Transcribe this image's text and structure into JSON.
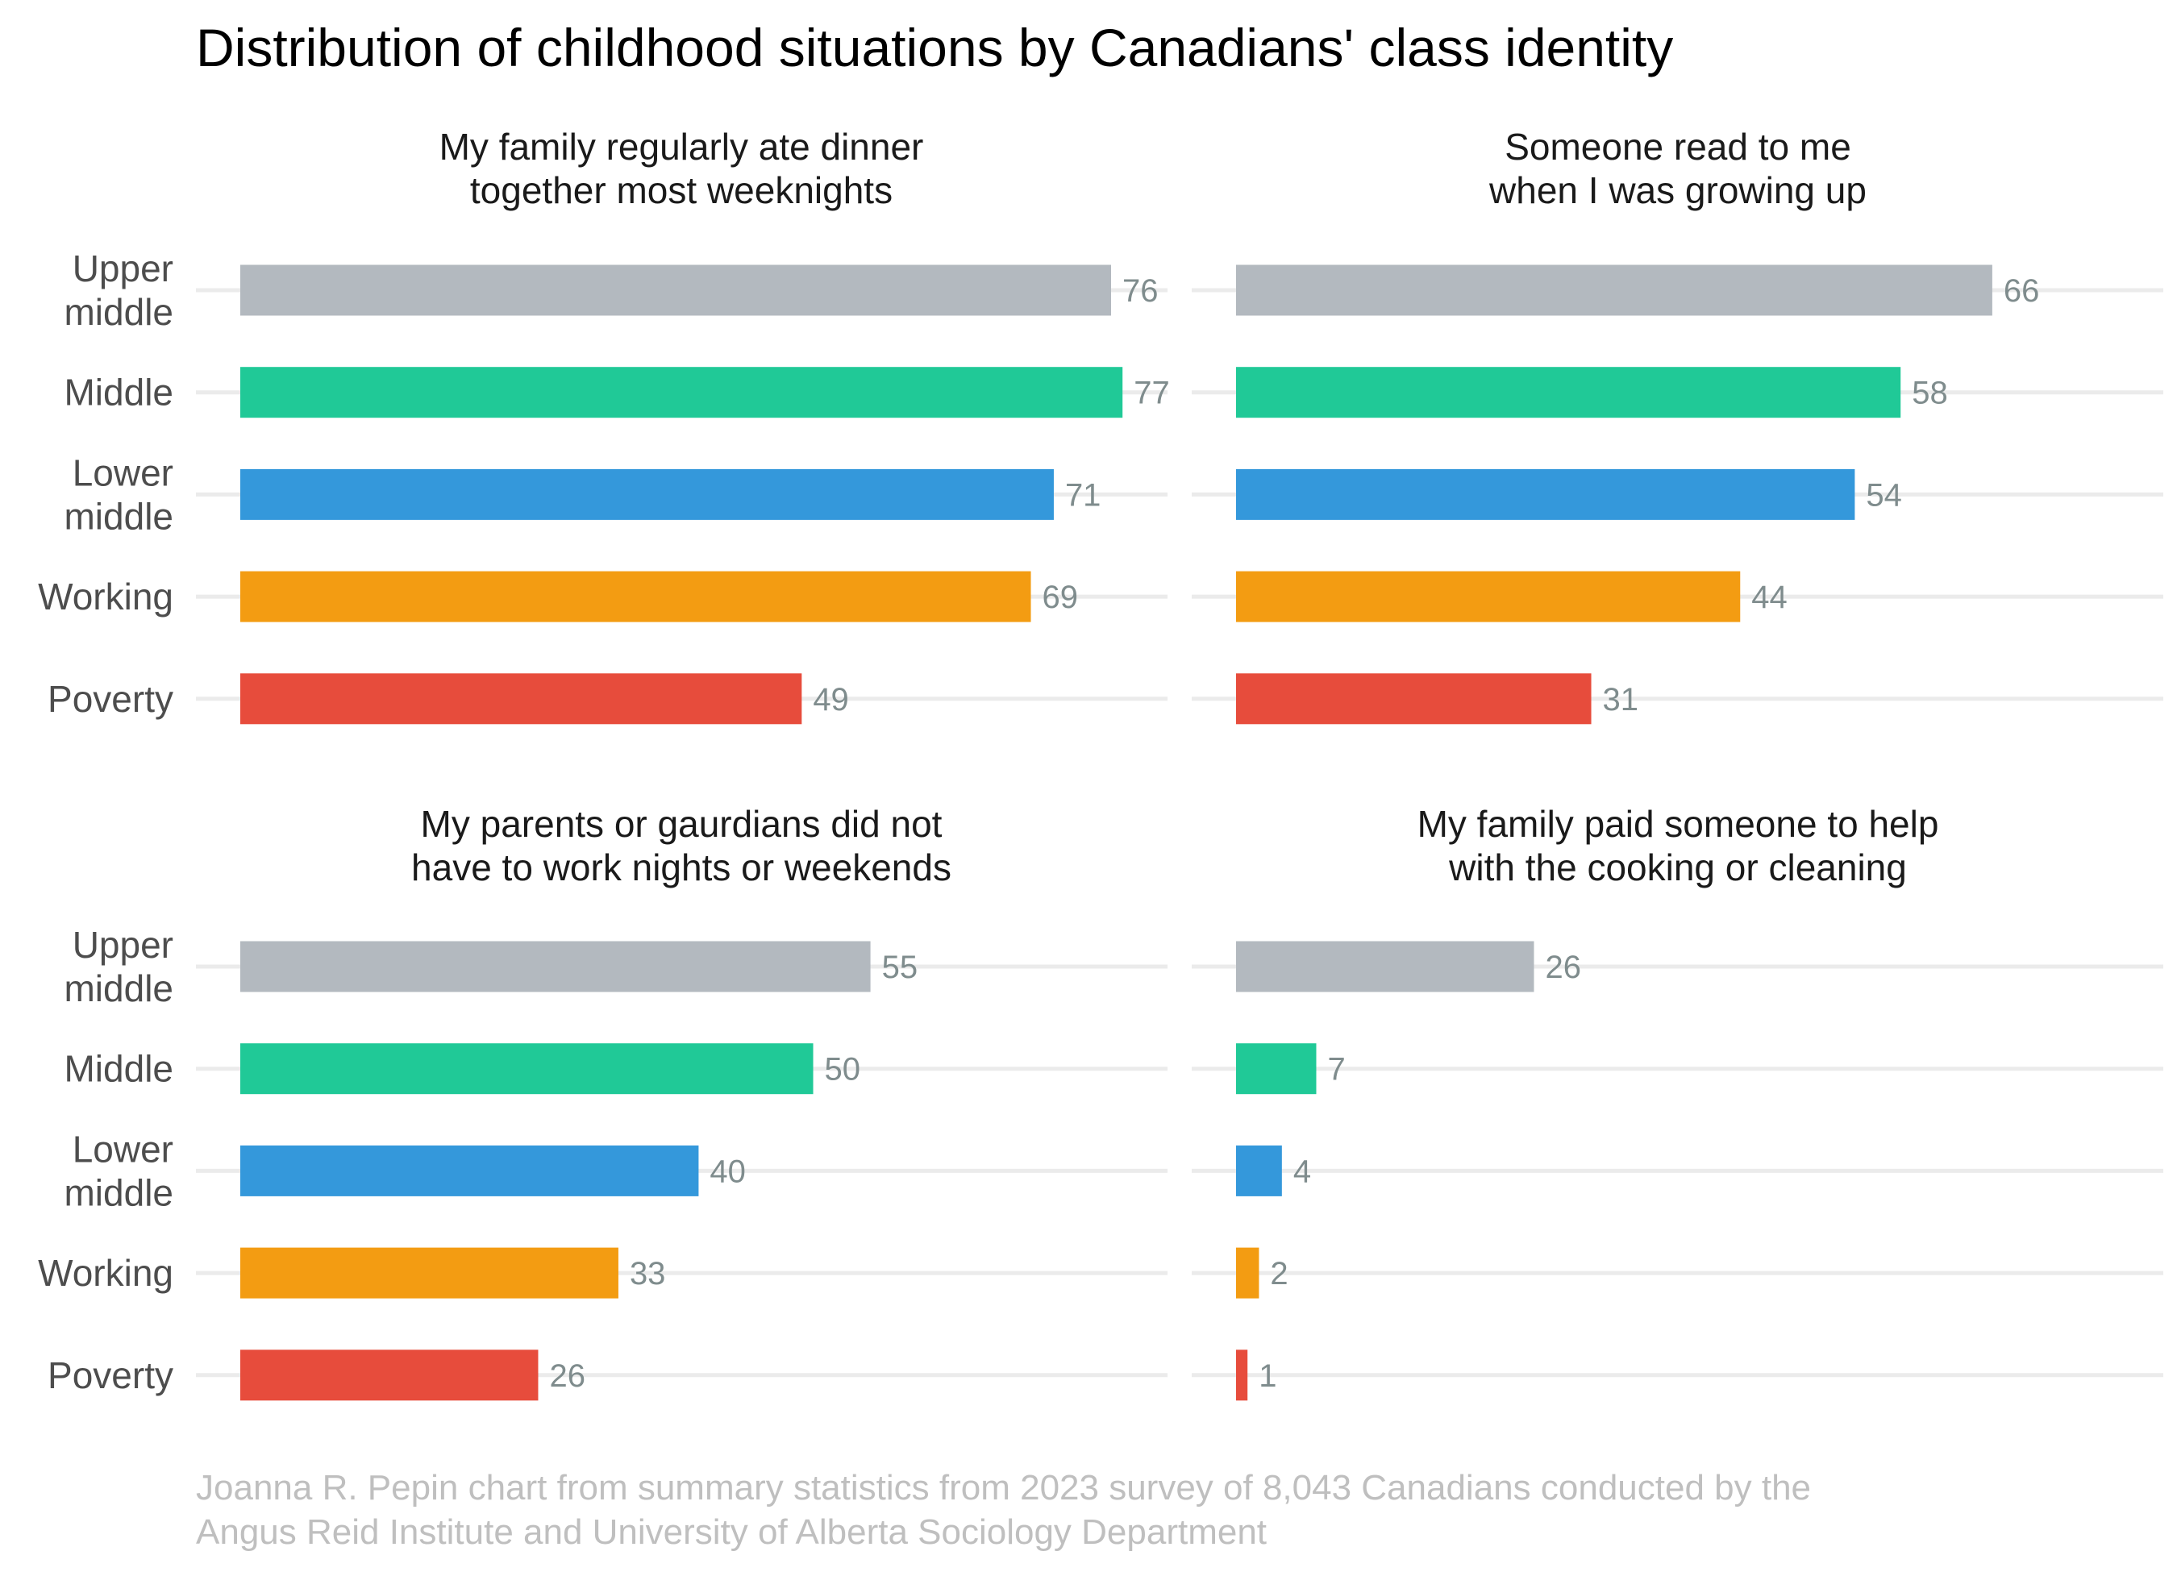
{
  "chart_data": {
    "type": "bar",
    "orientation": "horizontal",
    "title": "Distribution of childhood situations by Canadians' class identity",
    "caption": [
      "Joanna R. Pepin chart from summary statistics from 2023 survey of 8,043 Canadians conducted by the",
      "Angus Reid Institute and University of Alberta Sociology Department"
    ],
    "categories": [
      "Upper middle",
      "Middle",
      "Lower middle",
      "Working",
      "Poverty"
    ],
    "category_label_lines": [
      [
        "Upper",
        "middle"
      ],
      [
        "Middle"
      ],
      [
        "Lower",
        "middle"
      ],
      [
        "Working"
      ],
      [
        "Poverty"
      ]
    ],
    "colors": [
      "#b3b9bf",
      "#20c997",
      "#3498db",
      "#f39c12",
      "#e74c3c"
    ],
    "xlim": [
      0,
      80
    ],
    "grid": true,
    "legend": "none",
    "facets": [
      {
        "title_lines": [
          "My family regularly ate dinner",
          "together most weeknights"
        ],
        "values": [
          76,
          77,
          71,
          69,
          49
        ]
      },
      {
        "title_lines": [
          "Someone read to me",
          "when I was growing up"
        ],
        "values": [
          66,
          58,
          54,
          44,
          31
        ]
      },
      {
        "title_lines": [
          "My parents or gaurdians did not",
          "have to work nights or weekends"
        ],
        "values": [
          55,
          50,
          40,
          33,
          26
        ]
      },
      {
        "title_lines": [
          "My family paid someone to help",
          "with the cooking or cleaning"
        ],
        "values": [
          26,
          7,
          4,
          2,
          1
        ]
      }
    ]
  }
}
